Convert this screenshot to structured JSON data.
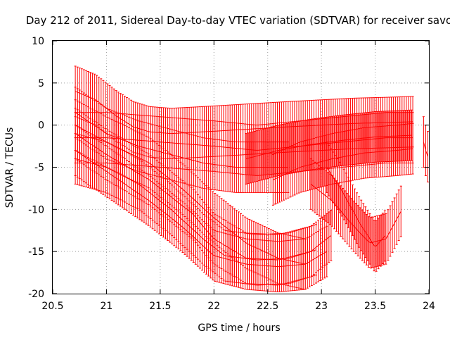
{
  "chart_data": {
    "type": "scatter",
    "title": "Day 212 of 2011, Sidereal Day-to-day VTEC variation (SDTVAR) for receiver savo",
    "xlabel": "GPS time / hours",
    "ylabel": "SDTVAR / TECUs",
    "xlim": [
      20.5,
      24
    ],
    "ylim": [
      -20,
      10
    ],
    "x_ticks": [
      "20.5",
      "21",
      "21.5",
      "22",
      "22.5",
      "23",
      "23.5",
      "24"
    ],
    "y_ticks": [
      "10",
      "5",
      "0",
      "-5",
      "-10",
      "-15",
      "-20"
    ],
    "x_tick_values": [
      20.5,
      21,
      21.5,
      22,
      22.5,
      23,
      23.5,
      24
    ],
    "y_tick_values": [
      10,
      5,
      0,
      -5,
      -10,
      -15,
      -20
    ],
    "grid": true,
    "series_color": "#ff0000",
    "errorbar_halfwidth": 3,
    "sample_step_hours": 0.02,
    "tracks": [
      {
        "x": [
          20.71,
          20.9,
          21.1,
          21.25,
          21.4,
          21.6,
          21.9,
          22.3,
          22.7,
          23.0,
          23.3,
          23.6,
          23.85
        ],
        "y": [
          4.0,
          3.0,
          1.0,
          -0.2,
          -0.8,
          -1.0,
          -0.8,
          -0.5,
          -0.2,
          0.0,
          0.2,
          0.3,
          0.4
        ]
      },
      {
        "x": [
          20.71,
          21.0,
          21.3,
          21.6,
          21.9,
          22.2,
          22.5,
          22.7
        ],
        "y": [
          1.5,
          -1.0,
          -2.5,
          -3.5,
          -4.5,
          -5.0,
          -5.0,
          -5.0
        ]
      },
      {
        "x": [
          20.71,
          21.0,
          21.4,
          21.7,
          22.0,
          22.3,
          22.6,
          22.85
        ],
        "y": [
          0.0,
          -2.0,
          -4.5,
          -7.5,
          -11.0,
          -14.0,
          -15.8,
          -16.5
        ]
      },
      {
        "x": [
          20.71,
          21.0,
          21.4,
          21.8,
          22.0,
          22.3,
          22.6,
          22.9,
          23.1
        ],
        "y": [
          -1.0,
          -3.5,
          -6.5,
          -10.5,
          -13.5,
          -15.8,
          -16.0,
          -15.0,
          -13.0
        ]
      },
      {
        "x": [
          20.71,
          21.0,
          21.4,
          21.7,
          22.0,
          22.3,
          22.6,
          22.85,
          23.05
        ],
        "y": [
          -3.0,
          -5.5,
          -9.0,
          -12.0,
          -15.5,
          -16.5,
          -16.8,
          -16.5,
          -15.0
        ]
      },
      {
        "x": [
          20.71,
          21.0,
          21.3,
          21.6,
          21.9,
          22.1,
          22.4,
          22.7,
          22.95
        ],
        "y": [
          -4.0,
          -5.0,
          -7.0,
          -10.0,
          -13.5,
          -15.5,
          -16.0,
          -15.8,
          -14.8
        ]
      },
      {
        "x": [
          22.3,
          22.6,
          22.9,
          23.2,
          23.5,
          23.85
        ],
        "y": [
          -4.0,
          -3.0,
          -2.3,
          -1.8,
          -1.4,
          -1.2
        ]
      },
      {
        "x": [
          22.55,
          22.8,
          23.1,
          23.4,
          23.7,
          23.85
        ],
        "y": [
          -6.5,
          -5.0,
          -4.0,
          -3.3,
          -3.0,
          -2.8
        ]
      },
      {
        "x": [
          20.71,
          21.0,
          21.5,
          22.0,
          22.4,
          22.8,
          23.2,
          23.6,
          23.85
        ],
        "y": [
          -1.5,
          -1.5,
          -2.0,
          -2.5,
          -3.0,
          -2.5,
          -2.0,
          -1.5,
          -1.5
        ]
      },
      {
        "x": [
          22.9,
          23.1,
          23.3,
          23.45,
          23.6,
          23.75
        ],
        "y": [
          -7.0,
          -9.0,
          -12.0,
          -14.0,
          -13.5,
          -10.0
        ]
      },
      {
        "x": [
          23.05,
          23.2,
          23.35,
          23.5,
          23.6
        ],
        "y": [
          -5.0,
          -8.0,
          -11.5,
          -14.5,
          -13.0
        ]
      },
      {
        "x": [
          23.95,
          23.98,
          24.0
        ],
        "y": [
          -2.0,
          -3.5,
          -4.0
        ]
      }
    ]
  }
}
